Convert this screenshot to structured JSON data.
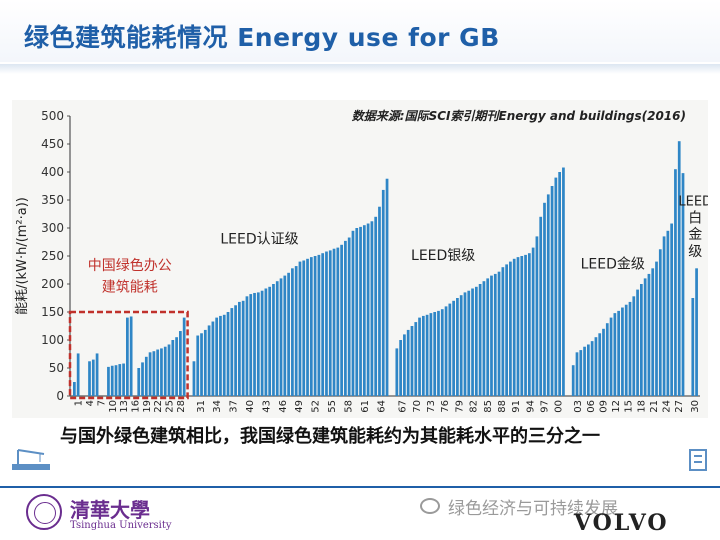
{
  "title": "绿色建筑能耗情况 Energy use for GB",
  "source_note": "数据来源:国际SCI索引期刊Energy and buildings(2016)",
  "caption": "与国外绿色建筑相比，我国绿色建筑能耗约为其能耗水平的三分之一",
  "footer": {
    "university_cn": "清華大學",
    "university_en": "Tsinghua University",
    "wechat_account": "绿色经济与可持续发展",
    "volvo_brand": "VOLVO"
  },
  "colors": {
    "title": "#1f5fa8",
    "bar": "#2f86c6",
    "china_highlight": "#c0312b",
    "ytick": "#333333"
  },
  "chart_data": {
    "type": "bar",
    "title": "",
    "xlabel": "",
    "ylabel": "能耗/(kW·h/(m²·a))",
    "ylim": [
      0,
      500
    ],
    "yticks": [
      0,
      50,
      100,
      150,
      200,
      250,
      300,
      350,
      400,
      450,
      500
    ],
    "grid": false,
    "groups": [
      {
        "name": "中国绿色办公建筑能耗",
        "values": [
          25,
          76,
          0,
          0,
          62,
          65,
          76,
          0,
          0,
          52,
          54,
          55,
          57,
          58,
          140,
          142,
          0,
          50,
          60,
          70,
          78,
          80,
          83,
          85,
          88,
          92,
          100,
          105,
          116,
          140
        ],
        "xticks": [
          "1",
          "4",
          "7",
          "10",
          "13",
          "16",
          "19",
          "22",
          "25",
          "28"
        ]
      },
      {
        "name": "LEED认证级",
        "values": [
          62,
          108,
          112,
          118,
          126,
          133,
          140,
          143,
          145,
          150,
          157,
          162,
          168,
          170,
          178,
          182,
          184,
          185,
          188,
          192,
          195,
          200,
          205,
          210,
          215,
          220,
          228,
          232,
          240,
          242,
          245,
          248,
          250,
          252,
          255,
          258,
          260,
          263,
          265,
          270,
          277,
          283,
          295,
          300,
          302,
          305,
          308,
          312,
          320,
          338,
          368,
          388
        ],
        "xticks": [
          "31",
          "34",
          "37",
          "40",
          "43",
          "46",
          "49",
          "52",
          "55",
          "58",
          "61",
          "64"
        ]
      },
      {
        "name": "LEED银级",
        "values": [
          85,
          100,
          110,
          118,
          125,
          132,
          140,
          143,
          145,
          148,
          150,
          152,
          155,
          160,
          165,
          170,
          175,
          180,
          185,
          188,
          192,
          195,
          200,
          205,
          210,
          215,
          218,
          222,
          230,
          235,
          240,
          245,
          248,
          250,
          252,
          255,
          265,
          285,
          320,
          345,
          360,
          375,
          390,
          400,
          408
        ],
        "xticks": [
          "67",
          "70",
          "73",
          "76",
          "79",
          "82",
          "85",
          "88",
          "91",
          "94",
          "97",
          "00"
        ]
      },
      {
        "name": "LEED金级",
        "values": [
          55,
          78,
          82,
          88,
          92,
          98,
          105,
          112,
          120,
          130,
          140,
          148,
          152,
          158,
          163,
          168,
          178,
          190,
          200,
          210,
          218,
          228,
          240,
          262,
          285,
          295,
          308,
          405,
          455,
          398
        ],
        "xticks": [
          "03",
          "06",
          "09",
          "12",
          "15",
          "18",
          "21",
          "24",
          "27"
        ]
      },
      {
        "name": "LEED白金级",
        "values": [
          175,
          228
        ],
        "xticks": [
          "30"
        ]
      }
    ],
    "annotations": [
      {
        "text": "中国绿色办公",
        "group": 0
      },
      {
        "text": "建筑能耗",
        "group": 0
      },
      {
        "text": "LEED认证级",
        "group": 1
      },
      {
        "text": "LEED银级",
        "group": 2
      },
      {
        "text": "LEED金级",
        "group": 3
      },
      {
        "text": "LEED",
        "group": 4
      },
      {
        "text": "白",
        "group": 4
      },
      {
        "text": "金",
        "group": 4
      },
      {
        "text": "级",
        "group": 4
      }
    ]
  }
}
